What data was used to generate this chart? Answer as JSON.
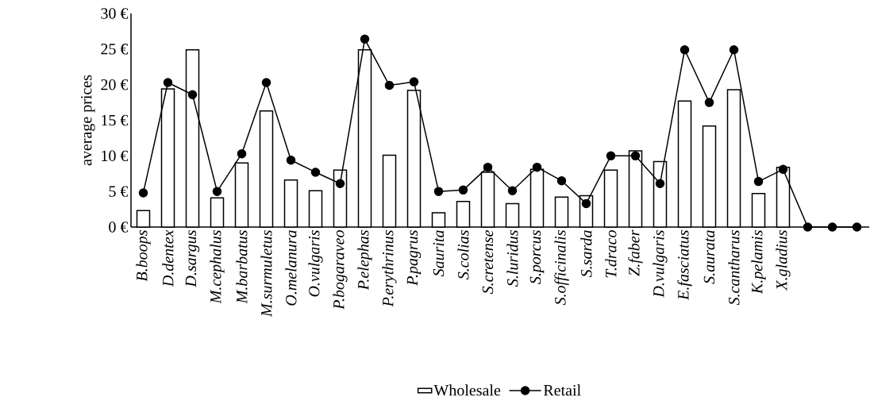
{
  "chart_data": {
    "type": "bar",
    "ylabel": "average prices",
    "categories": [
      "B.boops",
      "D.dentex",
      "D.sargus",
      "M.cephalus",
      "M.barbatus",
      "M.surmuletus",
      "O.melanura",
      "O.vulgaris",
      "P.bogaraveo",
      "P.elephas",
      "P.erythrinus",
      "P.pagrus",
      "Saurita",
      "S.colias",
      "S.cretense",
      "S.luridus",
      "S.porcus",
      "S.officinalis",
      "S.sarda",
      "T.draco",
      "Z.faber",
      "D.vulgaris",
      "E.fasciatus",
      "S.aurata",
      "S.cantharus",
      "K.pelamis",
      "X.gladius",
      null,
      null,
      null
    ],
    "series": [
      {
        "name": "Wholesale",
        "color": "#ffffff",
        "values": [
          2.3,
          19.4,
          24.9,
          4.1,
          9.0,
          16.3,
          6.6,
          5.1,
          8.0,
          24.9,
          10.1,
          19.2,
          2.0,
          3.6,
          7.7,
          3.3,
          8.1,
          4.2,
          4.4,
          8.0,
          10.7,
          9.2,
          17.7,
          14.2,
          19.3,
          4.7,
          8.4,
          null,
          null,
          null
        ]
      },
      {
        "name": "Retail",
        "type": "line",
        "color": "#000000",
        "values": [
          4.8,
          20.3,
          18.6,
          5.0,
          10.3,
          20.3,
          9.4,
          7.7,
          6.1,
          26.4,
          19.9,
          20.4,
          5.0,
          5.2,
          8.4,
          5.1,
          8.4,
          6.5,
          3.3,
          10.0,
          10.0,
          6.1,
          24.9,
          17.5,
          24.9,
          6.4,
          8.1,
          0,
          0,
          0
        ]
      }
    ],
    "ylim": [
      0,
      30
    ],
    "yticks": [
      {
        "value": 0,
        "label": "0 €"
      },
      {
        "value": 5,
        "label": "5 €"
      },
      {
        "value": 10,
        "label": "10 €"
      },
      {
        "value": 15,
        "label": "15 €"
      },
      {
        "value": 20,
        "label": "20 €"
      },
      {
        "value": 25,
        "label": "25 €"
      },
      {
        "value": 30,
        "label": "30 €"
      }
    ],
    "marker": "circle",
    "line_style": "solid",
    "legend": "bottom"
  }
}
